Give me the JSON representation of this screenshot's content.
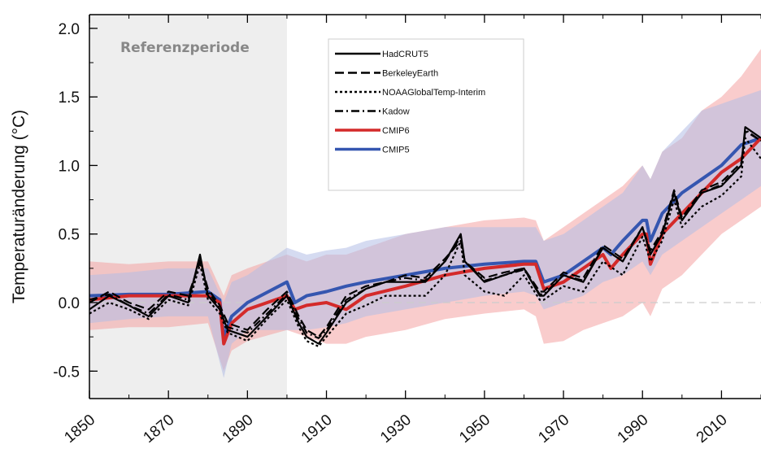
{
  "chart_data": {
    "type": "line",
    "ylabel": "Temperaturänderung (°C)",
    "xlim": [
      1850,
      2020
    ],
    "ylim": [
      -0.7,
      2.1
    ],
    "x_ticks": [
      1850,
      1870,
      1890,
      1910,
      1930,
      1950,
      1970,
      1990,
      2010
    ],
    "y_ticks": [
      {
        "value": 2.0,
        "label": "2.0"
      },
      {
        "value": 1.5,
        "label": "1.5"
      },
      {
        "value": 1.0,
        "label": "1.0"
      },
      {
        "value": 0.5,
        "label": "0.5"
      },
      {
        "value": 0.0,
        "label": "0.0"
      },
      {
        "value": -0.5,
        "label": "-0.5"
      }
    ],
    "reference_period": {
      "label": "Referenzperiode",
      "start": 1850,
      "end": 1900
    },
    "zero_line": true,
    "legend_position": "top-center",
    "series": [
      {
        "name": "HadCRUT5",
        "style": "solid",
        "color": "#000000",
        "x": [
          1850,
          1855,
          1860,
          1865,
          1870,
          1875,
          1878,
          1880,
          1883,
          1885,
          1890,
          1895,
          1900,
          1903,
          1905,
          1908,
          1910,
          1915,
          1920,
          1925,
          1930,
          1935,
          1940,
          1944,
          1945,
          1950,
          1955,
          1960,
          1964,
          1965,
          1970,
          1975,
          1980,
          1985,
          1990,
          1992,
          1995,
          1998,
          2000,
          2005,
          2010,
          2015,
          2016,
          2020
        ],
        "y": [
          -0.05,
          0.05,
          -0.02,
          -0.1,
          0.05,
          0.0,
          0.35,
          0.05,
          -0.05,
          -0.2,
          -0.25,
          -0.1,
          0.05,
          -0.15,
          -0.25,
          -0.3,
          -0.22,
          0.0,
          0.1,
          0.15,
          0.15,
          0.15,
          0.3,
          0.5,
          0.3,
          0.15,
          0.2,
          0.25,
          0.05,
          0.05,
          0.2,
          0.15,
          0.4,
          0.3,
          0.55,
          0.35,
          0.5,
          0.8,
          0.6,
          0.8,
          0.85,
          1.0,
          1.28,
          1.2
        ]
      },
      {
        "name": "BerkeleyEarth",
        "style": "dashed",
        "color": "#000000",
        "x": [
          1850,
          1855,
          1860,
          1865,
          1870,
          1875,
          1878,
          1880,
          1883,
          1885,
          1890,
          1895,
          1900,
          1903,
          1905,
          1908,
          1910,
          1915,
          1920,
          1925,
          1930,
          1935,
          1940,
          1944,
          1945,
          1950,
          1955,
          1960,
          1964,
          1965,
          1970,
          1975,
          1980,
          1985,
          1990,
          1992,
          1995,
          1998,
          2000,
          2005,
          2010,
          2015,
          2016,
          2020
        ],
        "y": [
          0.0,
          0.08,
          0.0,
          -0.05,
          0.08,
          0.05,
          0.3,
          0.1,
          -0.02,
          -0.15,
          -0.2,
          -0.05,
          0.08,
          -0.1,
          -0.2,
          -0.25,
          -0.18,
          0.05,
          0.12,
          0.15,
          0.2,
          0.18,
          0.32,
          0.45,
          0.3,
          0.18,
          0.22,
          0.25,
          0.08,
          0.08,
          0.22,
          0.18,
          0.42,
          0.32,
          0.55,
          0.38,
          0.52,
          0.82,
          0.62,
          0.82,
          0.88,
          1.02,
          1.25,
          1.18
        ]
      },
      {
        "name": "NOAAGlobalTemp-Interim",
        "style": "dotted",
        "color": "#000000",
        "x": [
          1850,
          1855,
          1860,
          1865,
          1870,
          1875,
          1878,
          1880,
          1883,
          1885,
          1890,
          1895,
          1900,
          1903,
          1905,
          1908,
          1910,
          1915,
          1920,
          1925,
          1930,
          1935,
          1940,
          1944,
          1945,
          1950,
          1955,
          1960,
          1964,
          1965,
          1970,
          1975,
          1980,
          1985,
          1990,
          1992,
          1995,
          1998,
          2000,
          2005,
          2010,
          2015,
          2016,
          2020
        ],
        "y": [
          -0.08,
          0.0,
          -0.05,
          -0.12,
          0.02,
          -0.02,
          0.28,
          0.02,
          -0.08,
          -0.22,
          -0.28,
          -0.12,
          0.02,
          -0.18,
          -0.28,
          -0.32,
          -0.25,
          -0.08,
          -0.02,
          0.05,
          0.05,
          0.05,
          0.2,
          0.45,
          0.2,
          0.08,
          0.05,
          0.2,
          0.02,
          0.02,
          0.12,
          0.08,
          0.3,
          0.2,
          0.48,
          0.3,
          0.45,
          0.75,
          0.55,
          0.7,
          0.78,
          0.92,
          1.2,
          1.05
        ]
      },
      {
        "name": "Kadow",
        "style": "dashdot",
        "color": "#000000",
        "x": [
          1850,
          1855,
          1860,
          1865,
          1870,
          1875,
          1878,
          1880,
          1883,
          1885,
          1890,
          1895,
          1900,
          1903,
          1905,
          1908,
          1910,
          1915,
          1920,
          1925,
          1930,
          1935,
          1940,
          1944,
          1945,
          1950,
          1955,
          1960,
          1964,
          1965,
          1970,
          1975,
          1980,
          1985,
          1990,
          1992,
          1995,
          1998,
          2000,
          2005,
          2010,
          2015,
          2016,
          2020
        ],
        "y": [
          0.02,
          0.06,
          -0.02,
          -0.08,
          0.06,
          0.02,
          0.32,
          0.08,
          -0.04,
          -0.18,
          -0.22,
          -0.08,
          0.06,
          -0.12,
          -0.22,
          -0.26,
          -0.2,
          0.02,
          0.1,
          0.15,
          0.18,
          0.16,
          0.3,
          0.48,
          0.3,
          0.16,
          0.2,
          0.24,
          0.06,
          0.06,
          0.2,
          0.16,
          0.4,
          0.3,
          0.55,
          0.36,
          0.5,
          0.8,
          0.6,
          0.8,
          0.86,
          1.0,
          1.26,
          1.18
        ]
      },
      {
        "name": "CMIP6",
        "style": "solid",
        "color": "#d42a2a",
        "x": [
          1850,
          1860,
          1870,
          1880,
          1883,
          1884,
          1886,
          1890,
          1900,
          1902,
          1905,
          1910,
          1915,
          1920,
          1930,
          1940,
          1950,
          1960,
          1963,
          1965,
          1970,
          1975,
          1980,
          1982,
          1985,
          1990,
          1991,
          1992,
          1995,
          2000,
          2005,
          2010,
          2015,
          2020
        ],
        "y": [
          0.02,
          0.05,
          0.05,
          0.05,
          0.0,
          -0.3,
          -0.15,
          -0.05,
          0.05,
          -0.05,
          -0.02,
          0.0,
          -0.05,
          0.05,
          0.12,
          0.2,
          0.25,
          0.28,
          0.28,
          0.1,
          0.15,
          0.25,
          0.35,
          0.25,
          0.35,
          0.5,
          0.5,
          0.28,
          0.5,
          0.65,
          0.8,
          0.95,
          1.05,
          1.2
        ]
      },
      {
        "name": "CMIP5",
        "style": "solid",
        "color": "#3556b0",
        "x": [
          1850,
          1860,
          1870,
          1880,
          1883,
          1884,
          1886,
          1890,
          1900,
          1902,
          1905,
          1910,
          1915,
          1920,
          1930,
          1940,
          1950,
          1960,
          1963,
          1965,
          1970,
          1975,
          1980,
          1982,
          1985,
          1990,
          1991,
          1992,
          1995,
          2000,
          2005,
          2010,
          2015,
          2020
        ],
        "y": [
          0.05,
          0.06,
          0.06,
          0.08,
          0.02,
          -0.25,
          -0.1,
          0.0,
          0.15,
          0.0,
          0.05,
          0.08,
          0.12,
          0.15,
          0.2,
          0.25,
          0.28,
          0.3,
          0.3,
          0.15,
          0.2,
          0.3,
          0.4,
          0.35,
          0.45,
          0.6,
          0.6,
          0.45,
          0.65,
          0.8,
          0.9,
          1.0,
          1.15,
          1.2
        ]
      }
    ],
    "bands": [
      {
        "name": "CMIP6",
        "color": "#f4a3a3",
        "x": [
          1850,
          1860,
          1870,
          1880,
          1884,
          1886,
          1890,
          1900,
          1905,
          1910,
          1915,
          1920,
          1930,
          1940,
          1950,
          1960,
          1963,
          1965,
          1970,
          1975,
          1980,
          1985,
          1990,
          1992,
          1995,
          2000,
          2005,
          2010,
          2015,
          2020
        ],
        "low": [
          -0.2,
          -0.18,
          -0.18,
          -0.15,
          -0.5,
          -0.35,
          -0.28,
          -0.2,
          -0.25,
          -0.3,
          -0.3,
          -0.25,
          -0.2,
          -0.12,
          -0.08,
          -0.05,
          -0.1,
          -0.3,
          -0.28,
          -0.2,
          -0.15,
          -0.1,
          0.0,
          -0.1,
          0.1,
          0.2,
          0.35,
          0.5,
          0.6,
          0.7
        ],
        "high": [
          0.3,
          0.28,
          0.3,
          0.3,
          0.05,
          0.2,
          0.25,
          0.35,
          0.3,
          0.35,
          0.35,
          0.4,
          0.5,
          0.55,
          0.6,
          0.62,
          0.6,
          0.45,
          0.55,
          0.65,
          0.75,
          0.85,
          1.0,
          0.9,
          1.1,
          1.2,
          1.4,
          1.5,
          1.65,
          1.85
        ]
      },
      {
        "name": "CMIP5",
        "color": "#b3bde6",
        "x": [
          1850,
          1860,
          1870,
          1880,
          1884,
          1886,
          1890,
          1900,
          1905,
          1910,
          1915,
          1920,
          1930,
          1940,
          1950,
          1960,
          1963,
          1965,
          1970,
          1975,
          1980,
          1985,
          1990,
          1992,
          1995,
          2000,
          2005,
          2010,
          2015,
          2020
        ],
        "low": [
          -0.15,
          -0.12,
          -0.1,
          -0.1,
          -0.55,
          -0.3,
          -0.2,
          -0.2,
          -0.2,
          -0.18,
          -0.15,
          -0.1,
          -0.05,
          0.0,
          0.05,
          0.08,
          0.05,
          -0.05,
          0.0,
          0.05,
          0.15,
          0.2,
          0.3,
          0.2,
          0.35,
          0.45,
          0.55,
          0.65,
          0.75,
          0.85
        ],
        "high": [
          0.2,
          0.22,
          0.25,
          0.25,
          0.0,
          0.15,
          0.2,
          0.4,
          0.35,
          0.38,
          0.4,
          0.45,
          0.5,
          0.55,
          0.55,
          0.55,
          0.55,
          0.45,
          0.5,
          0.6,
          0.7,
          0.8,
          1.0,
          0.9,
          1.1,
          1.25,
          1.4,
          1.45,
          1.5,
          1.55
        ]
      }
    ]
  }
}
